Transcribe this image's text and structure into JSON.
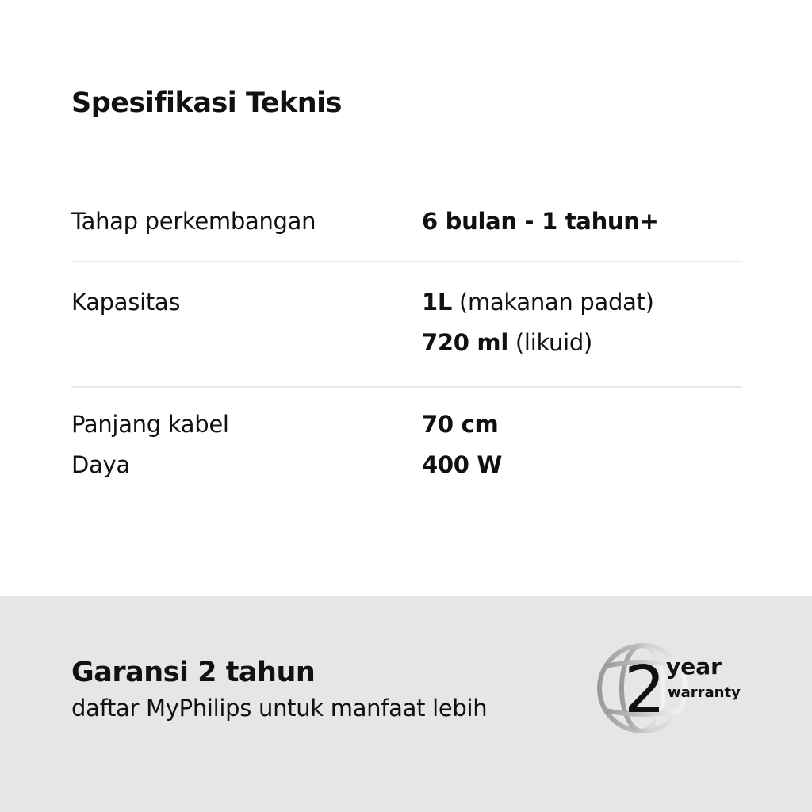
{
  "title": "Spesifikasi Teknis",
  "specs": [
    {
      "label": "Tahap perkembangan",
      "values": [
        {
          "bold": "6 bulan - 1 tahun+",
          "normal": ""
        }
      ]
    },
    {
      "label": "Kapasitas",
      "values": [
        {
          "bold": "1L",
          "normal": " (makanan padat)"
        },
        {
          "bold": "720 ml",
          "normal": " (likuid)"
        }
      ]
    },
    {
      "label": "Panjang kabel",
      "values": [
        {
          "bold": "70 cm",
          "normal": ""
        }
      ]
    },
    {
      "label": "Daya",
      "values": [
        {
          "bold": "400 W",
          "normal": ""
        }
      ]
    }
  ],
  "footer": {
    "title": "Garansi 2 tahun",
    "subtitle": "daftar MyPhilips untuk manfaat lebih",
    "logo": {
      "number": "2",
      "line1": "year",
      "line2": "warranty",
      "icon": "globe-icon"
    }
  },
  "colors": {
    "footer_bg": "#e6e6e6",
    "divider": "#e8e8e8"
  }
}
